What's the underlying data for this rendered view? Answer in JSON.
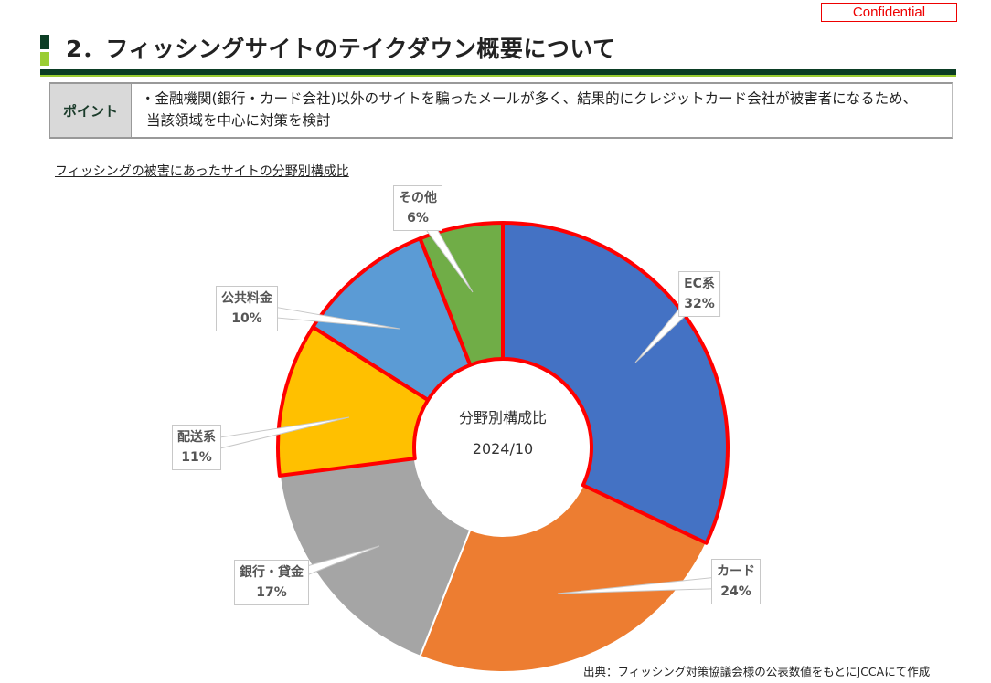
{
  "confidential": "Confidential",
  "title": "2．フィッシングサイトのテイクダウン概要について",
  "point": {
    "header": "ポイント",
    "text_line1": "・金融機関(銀行・カード会社)以外のサイトを騙ったメールが多く、結果的にクレジットカード会社が被害者になるため、",
    "text_line2": "当該領域を中心に対策を検討"
  },
  "subtitle": "フィッシングの被害にあったサイトの分野別構成比",
  "chart_data": {
    "type": "pie",
    "donut": true,
    "title": "フィッシングの被害にあったサイトの分野別構成比",
    "center_label": [
      "分野別構成比",
      "2024/10"
    ],
    "slices": [
      {
        "label": "EC系",
        "value": 32,
        "display": "32%",
        "color": "#4472c4",
        "highlighted": true
      },
      {
        "label": "カード",
        "value": 24,
        "display": "24%",
        "color": "#ed7d31",
        "highlighted": false
      },
      {
        "label": "銀行・貸金",
        "value": 17,
        "display": "17%",
        "color": "#a5a5a5",
        "highlighted": false
      },
      {
        "label": "配送系",
        "value": 11,
        "display": "11%",
        "color": "#ffc000",
        "highlighted": true
      },
      {
        "label": "公共料金",
        "value": 10,
        "display": "10%",
        "color": "#5b9bd5",
        "highlighted": true
      },
      {
        "label": "その他",
        "value": 6,
        "display": "6%",
        "color": "#70ad47",
        "highlighted": true
      }
    ],
    "highlight_color": "#ff0000"
  },
  "source": "出典：フィッシング対策協議会様の公表数値をもとにJCCAにて作成"
}
